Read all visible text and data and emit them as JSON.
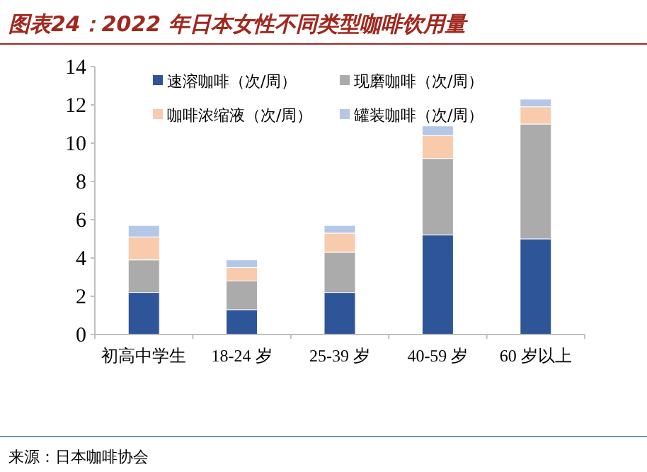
{
  "chart_data": {
    "type": "bar",
    "stacked": true,
    "title": "图表24：2022 年日本女性不同类型咖啡饮用量",
    "categories": [
      "初高中学生",
      "18-24 岁",
      "25-39 岁",
      "40-59 岁",
      "60 岁以上"
    ],
    "series": [
      {
        "name": "速溶咖啡（次/周）",
        "color": "#2e5597",
        "values": [
          2.2,
          1.3,
          2.2,
          5.2,
          5.0
        ]
      },
      {
        "name": "现磨咖啡（次/周）",
        "color": "#ababab",
        "values": [
          1.7,
          1.5,
          2.1,
          4.0,
          6.0
        ]
      },
      {
        "name": "咖啡浓缩液（次/周）",
        "color": "#f7cbac",
        "values": [
          1.2,
          0.7,
          1.0,
          1.2,
          0.9
        ]
      },
      {
        "name": "罐装咖啡（次/周）",
        "color": "#b4c7e7",
        "values": [
          0.6,
          0.4,
          0.4,
          0.5,
          0.4
        ]
      }
    ],
    "ylim": [
      0,
      14
    ],
    "yticks": [
      0,
      2,
      4,
      6,
      8,
      10,
      12,
      14
    ],
    "grid": false,
    "legend": "top",
    "annotations": [
      "来源：日本咖啡协会"
    ]
  }
}
